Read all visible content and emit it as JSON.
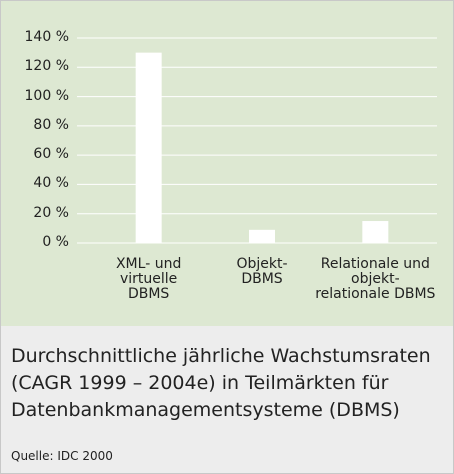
{
  "chart_data": {
    "type": "bar",
    "title": "Durchschnittliche jährliche Wachstumsraten (CAGR 1999 – 2004e) in Teilmärkten für Datenbankmanagementsysteme (DBMS)",
    "source": "Quelle: IDC 2000",
    "categories": [
      "XML- und\nvirtuelle\nDBMS",
      "Objekt-\nDBMS",
      "Relationale und\nobjekt-\nrelationale DBMS"
    ],
    "values": [
      130,
      9,
      15
    ],
    "color": "#ffffff",
    "ylim": [
      0,
      140
    ],
    "yticks": [
      {
        "value": 0,
        "label": "0 %"
      },
      {
        "value": 20,
        "label": "20 %"
      },
      {
        "value": 40,
        "label": "40 %"
      },
      {
        "value": 60,
        "label": "60 %"
      },
      {
        "value": 80,
        "label": "80 %"
      },
      {
        "value": 100,
        "label": "100 %"
      },
      {
        "value": 120,
        "label": "120 %"
      },
      {
        "value": 140,
        "label": "140 %"
      }
    ],
    "grid": true
  }
}
